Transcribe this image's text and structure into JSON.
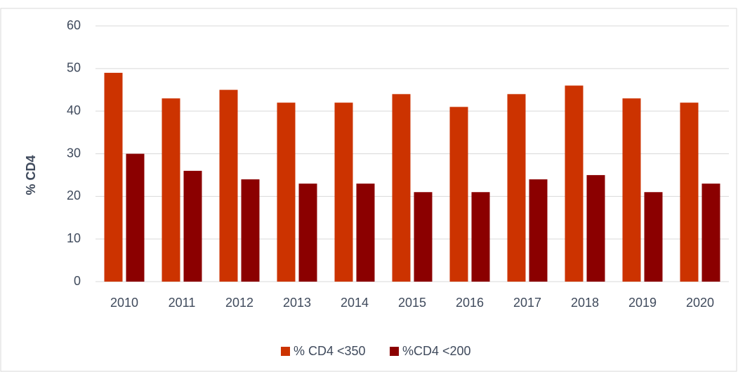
{
  "chart_data": {
    "type": "bar",
    "ylabel": "% CD4",
    "categories": [
      "2010",
      "2011",
      "2012",
      "2013",
      "2014",
      "2015",
      "2016",
      "2017",
      "2018",
      "2019",
      "2020"
    ],
    "series": [
      {
        "name": "% CD4 <350",
        "color": "#cc3300",
        "values": [
          49,
          43,
          45,
          42,
          42,
          44,
          41,
          44,
          46,
          43,
          42
        ]
      },
      {
        "name": "%CD4 <200",
        "color": "#8b0000",
        "values": [
          30,
          26,
          24,
          23,
          23,
          21,
          21,
          24,
          25,
          21,
          23
        ]
      }
    ],
    "ylim": [
      0,
      60
    ],
    "yticks": [
      0,
      10,
      20,
      30,
      40,
      50,
      60
    ],
    "grid": true,
    "legend": "bottom"
  }
}
